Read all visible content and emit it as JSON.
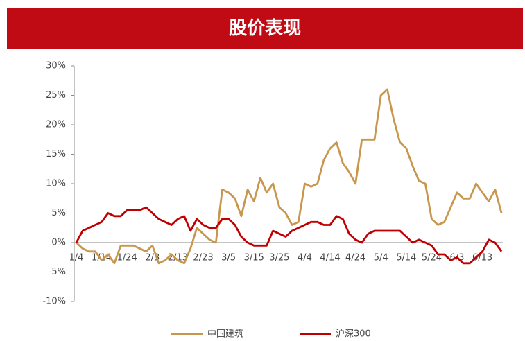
{
  "chart_data": {
    "type": "line",
    "title": "股价表现",
    "categories": [
      "1/4",
      null,
      null,
      null,
      "1/14",
      null,
      null,
      null,
      "1/24",
      null,
      null,
      null,
      "2/3",
      null,
      null,
      null,
      "2/13",
      null,
      null,
      null,
      "2/23",
      null,
      null,
      null,
      "3/5",
      null,
      null,
      null,
      "3/15",
      null,
      null,
      null,
      "3/25",
      null,
      null,
      null,
      "4/4",
      null,
      null,
      null,
      "4/14",
      null,
      null,
      null,
      "4/24",
      null,
      null,
      null,
      "5/4",
      null,
      null,
      null,
      "5/14",
      null,
      null,
      null,
      "5/24",
      null,
      null,
      null,
      "6/3",
      null,
      null,
      null,
      "6/13",
      null,
      null,
      null
    ],
    "series": [
      {
        "name": "中国建筑",
        "color": "#c8964c",
        "values": [
          0,
          -1,
          -1.5,
          -1.5,
          -3,
          -2,
          -3.5,
          -0.5,
          -0.5,
          -0.5,
          -1,
          -1.5,
          -0.5,
          -3.5,
          -3,
          -2,
          -3,
          -3.5,
          -1,
          2.5,
          1.5,
          0.5,
          0,
          9,
          8.5,
          7.5,
          4.5,
          9,
          7,
          11,
          8.5,
          10,
          6,
          5,
          3,
          3.5,
          10,
          9.5,
          10,
          14,
          16,
          17,
          13.5,
          12,
          10,
          17.5,
          17.5,
          17.5,
          25,
          26,
          21,
          17,
          16,
          13,
          10.5,
          10,
          4,
          3,
          3.5,
          6,
          8.5,
          7.5,
          7.5,
          10,
          8.5,
          7,
          9,
          5
        ]
      },
      {
        "name": "沪深300",
        "color": "#c00000",
        "values": [
          0,
          2,
          2.5,
          3,
          3.5,
          5,
          4.5,
          4.5,
          5.5,
          5.5,
          5.5,
          6,
          5,
          4,
          3.5,
          3,
          4,
          4.5,
          2,
          4,
          3,
          2.5,
          2.5,
          4,
          4,
          3,
          1,
          0,
          -0.5,
          -0.5,
          -0.5,
          2,
          1.5,
          1,
          2,
          2.5,
          3,
          3.5,
          3.5,
          3,
          3,
          4.5,
          4,
          1.5,
          0.5,
          0,
          1.5,
          2,
          2,
          2,
          2,
          2,
          1,
          0,
          0.5,
          0,
          -0.5,
          -2,
          -2,
          -3,
          -2.5,
          -3.5,
          -3.5,
          -2.5,
          -1.5,
          0.5,
          0,
          -1.5
        ]
      }
    ],
    "ylim": [
      -10,
      30
    ],
    "yticks": [
      {
        "value": -10,
        "label": "-10%"
      },
      {
        "value": -5,
        "label": "-5%"
      },
      {
        "value": 0,
        "label": "0%"
      },
      {
        "value": 5,
        "label": "5%"
      },
      {
        "value": 10,
        "label": "10%"
      },
      {
        "value": 15,
        "label": "15%"
      },
      {
        "value": 20,
        "label": "20%"
      },
      {
        "value": 25,
        "label": "25%"
      },
      {
        "value": 30,
        "label": "30%"
      }
    ],
    "grid": false
  }
}
